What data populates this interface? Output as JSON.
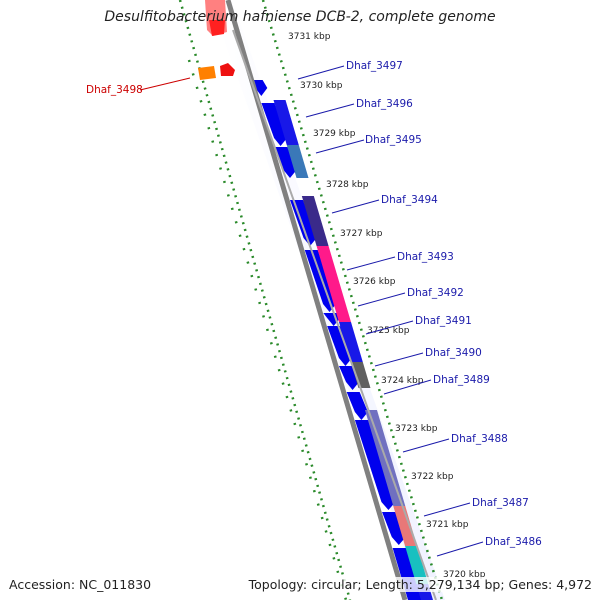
{
  "title": "Desulfitobacterium hafniense DCB-2, complete genome",
  "footer": {
    "accession": "Accession: NC_011830",
    "summary": "Topology: circular; Length: 5,279,134 bp; Genes: 4,972"
  },
  "colors": {
    "backbone": "#808080",
    "dotted_track": "#2a8a2a",
    "gene_blue": "#0000ee",
    "label_blue": "#1a1aaa",
    "label_red": "#cc0000"
  },
  "kbp_marks": [
    {
      "kbp": 3731,
      "label": "3731 kbp"
    },
    {
      "kbp": 3730,
      "label": "3730 kbp"
    },
    {
      "kbp": 3729,
      "label": "3729 kbp"
    },
    {
      "kbp": 3728,
      "label": "3728 kbp"
    },
    {
      "kbp": 3727,
      "label": "3727 kbp"
    },
    {
      "kbp": 3726,
      "label": "3726 kbp"
    },
    {
      "kbp": 3725,
      "label": "3725 kbp"
    },
    {
      "kbp": 3724,
      "label": "3724 kbp"
    },
    {
      "kbp": 3723,
      "label": "3723 kbp"
    },
    {
      "kbp": 3722,
      "label": "3722 kbp"
    },
    {
      "kbp": 3721,
      "label": "3721 kbp"
    },
    {
      "kbp": 3720,
      "label": "3720 kbp"
    }
  ],
  "gene_labels": [
    {
      "name": "Dhaf_3497",
      "color": "#1a1aaa"
    },
    {
      "name": "Dhaf_3496",
      "color": "#1a1aaa"
    },
    {
      "name": "Dhaf_3495",
      "color": "#1a1aaa"
    },
    {
      "name": "Dhaf_3494",
      "color": "#1a1aaa"
    },
    {
      "name": "Dhaf_3493",
      "color": "#1a1aaa"
    },
    {
      "name": "Dhaf_3492",
      "color": "#1a1aaa"
    },
    {
      "name": "Dhaf_3491",
      "color": "#1a1aaa"
    },
    {
      "name": "Dhaf_3490",
      "color": "#1a1aaa"
    },
    {
      "name": "Dhaf_3489",
      "color": "#1a1aaa"
    },
    {
      "name": "Dhaf_3488",
      "color": "#1a1aaa"
    },
    {
      "name": "Dhaf_3487",
      "color": "#1a1aaa"
    },
    {
      "name": "Dhaf_3486",
      "color": "#1a1aaa"
    },
    {
      "name": "Dhaf_3498",
      "color": "#cc0000"
    }
  ]
}
